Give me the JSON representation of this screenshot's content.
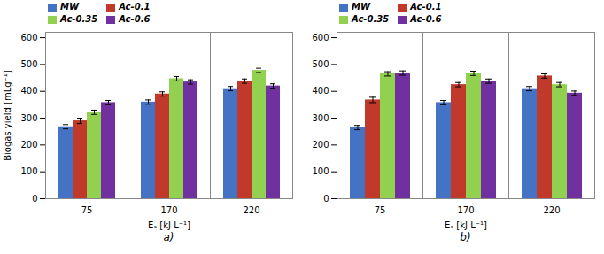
{
  "chart_data": [
    {
      "type": "bar",
      "title": "a)",
      "xlabel": "Eₛ [kJ L⁻¹]",
      "ylabel": "Biogas yield [mLg⁻¹]",
      "categories": [
        "75",
        "170",
        "220"
      ],
      "series": [
        {
          "name": "MW",
          "color": "#4472C4",
          "values": [
            268,
            360,
            410
          ],
          "errors": [
            8,
            8,
            8
          ]
        },
        {
          "name": "Ac-0.1",
          "color": "#C0392B",
          "values": [
            290,
            390,
            438
          ],
          "errors": [
            10,
            8,
            8
          ]
        },
        {
          "name": "Ac-0.35",
          "color": "#92D050",
          "values": [
            322,
            447,
            478
          ],
          "errors": [
            8,
            8,
            8
          ]
        },
        {
          "name": "Ac-0.6",
          "color": "#7030A0",
          "values": [
            358,
            435,
            420
          ],
          "errors": [
            8,
            8,
            8
          ]
        }
      ],
      "ylim": [
        0,
        620
      ],
      "yticks": [
        0,
        100,
        200,
        300,
        400,
        500,
        600
      ],
      "legend": "upper left",
      "grid": false
    },
    {
      "type": "bar",
      "title": "b)",
      "xlabel": "Eₛ [kJ L⁻¹]",
      "categories": [
        "75",
        "170",
        "220"
      ],
      "series": [
        {
          "name": "MW",
          "color": "#4472C4",
          "values": [
            265,
            358,
            410
          ],
          "errors": [
            8,
            8,
            8
          ]
        },
        {
          "name": "Ac-0.1",
          "color": "#C0392B",
          "values": [
            368,
            425,
            457
          ],
          "errors": [
            10,
            8,
            8
          ]
        },
        {
          "name": "Ac-0.35",
          "color": "#92D050",
          "values": [
            465,
            467,
            425
          ],
          "errors": [
            8,
            8,
            8
          ]
        },
        {
          "name": "Ac-0.6",
          "color": "#7030A0",
          "values": [
            468,
            438,
            393
          ],
          "errors": [
            8,
            8,
            8
          ]
        }
      ],
      "ylim": [
        0,
        620
      ],
      "yticks": [
        0,
        100,
        200,
        300,
        400,
        500,
        600
      ],
      "legend": "upper left",
      "grid": false
    }
  ]
}
